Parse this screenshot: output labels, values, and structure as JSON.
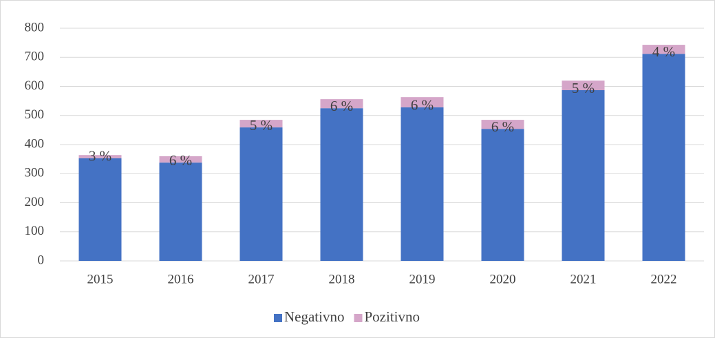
{
  "chart_data": {
    "type": "stacked_bar",
    "categories": [
      "2015",
      "2016",
      "2017",
      "2018",
      "2019",
      "2020",
      "2021",
      "2022"
    ],
    "series": [
      {
        "name": "Negativno",
        "color": "#4472c4",
        "values": [
          353,
          338,
          459,
          525,
          528,
          454,
          587,
          712
        ]
      },
      {
        "name": "Pozitivno",
        "color": "#d5a6c9",
        "values": [
          11,
          22,
          26,
          31,
          35,
          31,
          33,
          31
        ],
        "data_labels": [
          "3 %",
          "6 %",
          "5 %",
          "6 %",
          "6 %",
          "6 %",
          "5 %",
          "4 %"
        ]
      }
    ],
    "ylim": [
      0,
      800
    ],
    "yticks": [
      0,
      100,
      200,
      300,
      400,
      500,
      600,
      700,
      800
    ],
    "grid": true,
    "legend": "bottom"
  }
}
